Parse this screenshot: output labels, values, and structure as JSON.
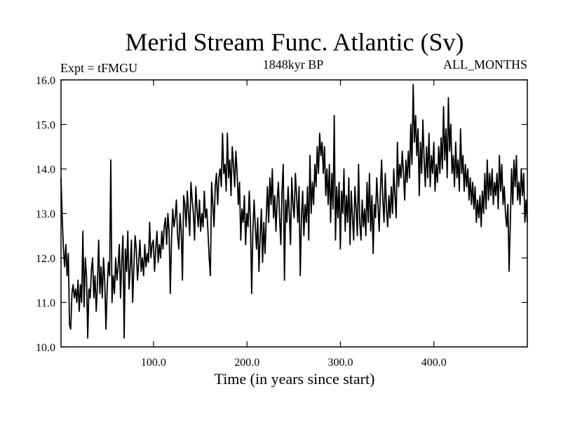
{
  "chart_data": {
    "type": "line",
    "title": "Merid Stream Func. Atlantic (Sv)",
    "left_label": "Expt = tFMGU",
    "center_label": "1848kyr BP",
    "right_label": "ALL_MONTHS",
    "xlabel": "Time (in years since start)",
    "ylabel": "",
    "xlim": [
      1,
      500
    ],
    "ylim": [
      10.0,
      16.0
    ],
    "xticks": [
      100,
      200,
      300,
      400
    ],
    "xtick_labels": [
      "100.0",
      "200.0",
      "300.0",
      "400.0"
    ],
    "yticks": [
      10,
      11,
      12,
      13,
      14,
      15,
      16
    ],
    "ytick_labels": [
      "10.0",
      "11.0",
      "12.0",
      "13.0",
      "14.0",
      "15.0",
      "16.0"
    ],
    "grid": false,
    "color": "#000000",
    "series": [
      {
        "name": "AMOC",
        "x_start": 1,
        "x_step": 1,
        "values": [
          13.8,
          12.9,
          12.2,
          11.8,
          12.3,
          11.6,
          12.1,
          10.5,
          10.4,
          11.2,
          11.4,
          11.1,
          11.3,
          11.0,
          11.5,
          10.8,
          11.4,
          11.0,
          12.6,
          10.9,
          12.0,
          11.6,
          10.2,
          11.3,
          11.1,
          11.7,
          12.0,
          11.1,
          11.6,
          10.8,
          11.4,
          12.4,
          11.2,
          11.8,
          11.1,
          12.0,
          11.5,
          10.4,
          11.3,
          11.9,
          11.6,
          14.2,
          11.0,
          11.6,
          11.2,
          12.0,
          11.5,
          11.8,
          12.3,
          11.1,
          11.9,
          12.5,
          10.2,
          12.2,
          11.7,
          12.6,
          11.3,
          11.8,
          12.4,
          11.0,
          11.8,
          12.5,
          12.2,
          11.5,
          11.9,
          12.4,
          11.7,
          12.0,
          11.6,
          12.3,
          11.8,
          12.1,
          11.9,
          12.8,
          12.0,
          12.3,
          12.4,
          11.7,
          12.2,
          12.6,
          11.9,
          12.3,
          12.0,
          12.6,
          12.2,
          12.7,
          12.9,
          12.3,
          13.0,
          12.6,
          11.2,
          12.4,
          13.1,
          12.7,
          12.9,
          13.3,
          12.5,
          12.2,
          13.0,
          12.6,
          11.5,
          13.4,
          13.2,
          12.7,
          13.5,
          13.0,
          12.5,
          13.7,
          13.3,
          13.0,
          12.4,
          13.6,
          13.1,
          12.7,
          13.3,
          12.6,
          13.0,
          12.7,
          13.5,
          12.9,
          13.1,
          12.6,
          12.0,
          11.6,
          13.7,
          13.2,
          12.7,
          13.6,
          13.9,
          13.2,
          13.8,
          14.0,
          13.6,
          14.8,
          13.9,
          14.1,
          13.5,
          14.8,
          13.8,
          14.2,
          13.4,
          14.5,
          14.1,
          13.6,
          14.4,
          13.9,
          13.2,
          13.7,
          12.4,
          13.1,
          12.8,
          13.4,
          12.3,
          13.0,
          12.7,
          13.5,
          12.8,
          11.2,
          12.6,
          13.3,
          12.7,
          12.2,
          12.9,
          11.7,
          12.5,
          13.1,
          11.9,
          12.8,
          12.1,
          12.9,
          13.6,
          12.8,
          13.8,
          13.2,
          14.0,
          12.9,
          13.4,
          12.6,
          13.3,
          13.7,
          12.9,
          12.3,
          13.5,
          14.1,
          11.5,
          13.3,
          12.8,
          13.6,
          13.0,
          12.3,
          13.8,
          13.2,
          12.9,
          13.9,
          13.4,
          12.8,
          13.6,
          11.6,
          12.9,
          13.5,
          12.5,
          13.2,
          12.8,
          13.6,
          12.4,
          14.3,
          13.0,
          13.7,
          13.2,
          14.1,
          13.6,
          14.5,
          13.9,
          14.8,
          14.3,
          14.6,
          13.9,
          14.5,
          13.4,
          14.0,
          13.2,
          14.1,
          12.8,
          13.9,
          13.1,
          15.2,
          12.4,
          13.6,
          12.9,
          13.7,
          12.2,
          13.5,
          13.0,
          14.0,
          12.6,
          13.4,
          12.8,
          13.8,
          12.3,
          13.5,
          12.9,
          12.4,
          13.6,
          13.1,
          12.5,
          14.1,
          12.8,
          12.4,
          13.3,
          12.7,
          13.1,
          12.5,
          13.7,
          12.8,
          13.9,
          12.6,
          13.4,
          12.1,
          13.2,
          12.9,
          13.8,
          13.2,
          12.6,
          13.5,
          14.2,
          13.3,
          12.8,
          13.9,
          13.1,
          12.7,
          13.4,
          12.9,
          13.6,
          13.0,
          14.0,
          13.4,
          12.9,
          14.6,
          13.6,
          14.1,
          13.8,
          14.4,
          13.9,
          13.3,
          14.2,
          13.7,
          14.4,
          13.8,
          15.0,
          14.1,
          15.9,
          14.6,
          15.2,
          14.3,
          14.9,
          13.4,
          14.6,
          13.9,
          15.1,
          14.2,
          13.6,
          14.5,
          13.8,
          14.8,
          13.6,
          14.3,
          13.9,
          14.6,
          13.5,
          14.1,
          13.7,
          14.5,
          13.9,
          14.7,
          14.0,
          15.4,
          14.2,
          14.9,
          13.8,
          15.6,
          14.4,
          15.0,
          13.9,
          14.3,
          13.6,
          14.6,
          13.8,
          14.2,
          13.5,
          14.9,
          13.9,
          14.3,
          13.5,
          14.1,
          13.6,
          14.0,
          13.3,
          13.8,
          13.2,
          13.7,
          13.1,
          13.6,
          12.8,
          13.3,
          12.9,
          13.4,
          12.7,
          13.5,
          13.0,
          13.9,
          13.1,
          14.2,
          13.3,
          13.9,
          13.4,
          14.0,
          13.2,
          13.7,
          13.4,
          13.9,
          13.1,
          14.3,
          13.5,
          14.1,
          13.2,
          13.6,
          13.0,
          12.7,
          13.2,
          11.7,
          12.8,
          14.0,
          13.2,
          14.2,
          13.6,
          14.3,
          13.3,
          13.7,
          13.2,
          14.0,
          13.4,
          13.9,
          12.8,
          13.3,
          12.8
        ]
      }
    ]
  }
}
